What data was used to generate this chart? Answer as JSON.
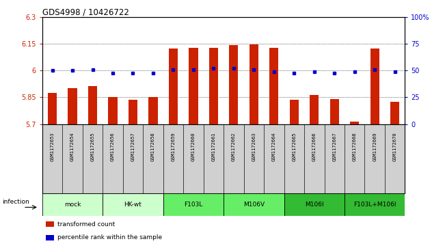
{
  "title": "GDS4998 / 10426722",
  "samples": [
    "GSM1172653",
    "GSM1172654",
    "GSM1172655",
    "GSM1172656",
    "GSM1172657",
    "GSM1172658",
    "GSM1172659",
    "GSM1172660",
    "GSM1172661",
    "GSM1172662",
    "GSM1172663",
    "GSM1172664",
    "GSM1172665",
    "GSM1172666",
    "GSM1172667",
    "GSM1172668",
    "GSM1172669",
    "GSM1172670"
  ],
  "bar_values": [
    5.875,
    5.9,
    5.915,
    5.851,
    5.835,
    5.851,
    6.125,
    6.13,
    6.13,
    6.145,
    6.148,
    6.13,
    5.835,
    5.865,
    5.84,
    5.715,
    6.125,
    5.825
  ],
  "dot_values": [
    50,
    50,
    51,
    48,
    48,
    48,
    51,
    51,
    52,
    52,
    51,
    49,
    48,
    49,
    48,
    49,
    51,
    49
  ],
  "ylim_left": [
    5.7,
    6.3
  ],
  "ylim_right": [
    0,
    100
  ],
  "yticks_left": [
    5.7,
    5.85,
    6.0,
    6.15,
    6.3
  ],
  "yticks_right": [
    0,
    25,
    50,
    75,
    100
  ],
  "ytick_labels_left": [
    "5.7",
    "5.85",
    "6",
    "6.15",
    "6.3"
  ],
  "ytick_labels_right": [
    "0",
    "25",
    "50",
    "75",
    "100%"
  ],
  "groups": [
    {
      "label": "mock",
      "start": 0,
      "end": 2,
      "color": "#ccffcc"
    },
    {
      "label": "HK-wt",
      "start": 3,
      "end": 5,
      "color": "#ccffcc"
    },
    {
      "label": "F103L",
      "start": 6,
      "end": 8,
      "color": "#66ee66"
    },
    {
      "label": "M106V",
      "start": 9,
      "end": 11,
      "color": "#66ee66"
    },
    {
      "label": "M106I",
      "start": 12,
      "end": 14,
      "color": "#33bb33"
    },
    {
      "label": "F103L+M106I",
      "start": 15,
      "end": 17,
      "color": "#33bb33"
    }
  ],
  "bar_color": "#cc2200",
  "dot_color": "#0000cc",
  "bar_width": 0.45,
  "bg_color": "#ffffff",
  "left_axis_color": "#cc2200",
  "right_axis_color": "#0000cc",
  "infection_label": "infection",
  "sample_box_color": "#d0d0d0",
  "legend_items": [
    {
      "label": "transformed count",
      "color": "#cc2200"
    },
    {
      "label": "percentile rank within the sample",
      "color": "#0000cc"
    }
  ]
}
